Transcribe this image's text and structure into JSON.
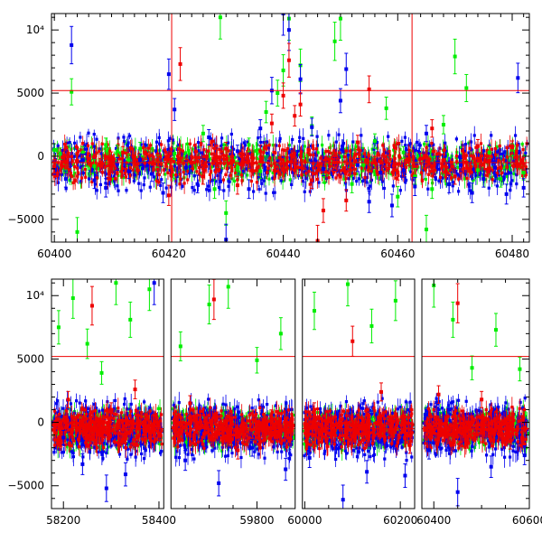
{
  "chart_data": [
    {
      "type": "scatter",
      "title": "",
      "xlabel": "",
      "ylabel": "",
      "xlim": [
        60399.5,
        60483
      ],
      "ylim": [
        -6800,
        11300
      ],
      "grid": false,
      "xticks": [
        60400,
        60420,
        60440,
        60460,
        60480
      ],
      "xtick_labels": [
        "60400",
        "60420",
        "60440",
        "60460",
        "60480"
      ],
      "yticks": [
        -5000,
        0,
        5000,
        10000
      ],
      "ytick_labels": [
        "−5000",
        "0",
        "5000",
        "10⁴"
      ],
      "reference_lines": {
        "horizontal": [
          5200,
          -500
        ],
        "vertical": [
          60420.5,
          60462.5
        ],
        "color": "#ee0000"
      },
      "series": [
        {
          "color": "#00ee00",
          "points": [
            [
              60400,
              500
            ],
            [
              60401,
              200
            ],
            [
              60402,
              -1200
            ],
            [
              60403,
              5100
            ],
            [
              60404,
              -6000
            ],
            [
              60405,
              300
            ],
            [
              60407,
              -800
            ],
            [
              60409,
              900
            ],
            [
              60411,
              400
            ],
            [
              60413,
              -300
            ],
            [
              60415,
              600
            ],
            [
              60418,
              -400
            ],
            [
              60421,
              200
            ],
            [
              60423,
              -900
            ],
            [
              60426,
              1800
            ],
            [
              60428,
              -2600
            ],
            [
              60429,
              11000
            ],
            [
              60430,
              -4500
            ],
            [
              60432,
              -900
            ],
            [
              60434,
              900
            ],
            [
              60436,
              -1200
            ],
            [
              60437,
              3500
            ],
            [
              60439,
              5000
            ],
            [
              60440,
              6800
            ],
            [
              60441,
              10900
            ],
            [
              60443,
              7200
            ],
            [
              60445,
              2400
            ],
            [
              60447,
              -1500
            ],
            [
              60449,
              9100
            ],
            [
              60450,
              10900
            ],
            [
              60452,
              -2200
            ],
            [
              60454,
              -700
            ],
            [
              60456,
              1200
            ],
            [
              60458,
              3800
            ],
            [
              60460,
              -3200
            ],
            [
              60461,
              300
            ],
            [
              60463,
              -1600
            ],
            [
              60465,
              -5800
            ],
            [
              60466,
              -2600
            ],
            [
              60468,
              2500
            ],
            [
              60470,
              7900
            ],
            [
              60472,
              5400
            ],
            [
              60474,
              -1100
            ],
            [
              60476,
              300
            ],
            [
              60478,
              -1800
            ],
            [
              60480,
              500
            ],
            [
              60482,
              -1300
            ]
          ]
        },
        {
          "color": "#0000ee",
          "points": [
            [
              60400,
              -900
            ],
            [
              60402,
              -1800
            ],
            [
              60403,
              8800
            ],
            [
              60405,
              -300
            ],
            [
              60407,
              -1900
            ],
            [
              60409,
              -2500
            ],
            [
              60411,
              -600
            ],
            [
              60413,
              -1200
            ],
            [
              60415,
              -300
            ],
            [
              60417,
              -1400
            ],
            [
              60419,
              -2900
            ],
            [
              60420,
              6500
            ],
            [
              60421,
              3700
            ],
            [
              60423,
              -900
            ],
            [
              60425,
              -2200
            ],
            [
              60427,
              1500
            ],
            [
              60429,
              -2000
            ],
            [
              60430,
              -6600
            ],
            [
              60432,
              400
            ],
            [
              60434,
              -2600
            ],
            [
              60436,
              2200
            ],
            [
              60438,
              5200
            ],
            [
              60440,
              11300
            ],
            [
              60441,
              10000
            ],
            [
              60443,
              6100
            ],
            [
              60445,
              2300
            ],
            [
              60447,
              -1000
            ],
            [
              60449,
              -600
            ],
            [
              60450,
              4400
            ],
            [
              60451,
              6900
            ],
            [
              60453,
              -700
            ],
            [
              60455,
              -3600
            ],
            [
              60457,
              -1300
            ],
            [
              60459,
              -3900
            ],
            [
              60461,
              -1100
            ],
            [
              60463,
              -2400
            ],
            [
              60465,
              1800
            ],
            [
              60467,
              -500
            ],
            [
              60469,
              -2200
            ],
            [
              60471,
              -700
            ],
            [
              60473,
              -2900
            ],
            [
              60475,
              -1800
            ],
            [
              60477,
              -900
            ],
            [
              60479,
              -3000
            ],
            [
              60481,
              6200
            ],
            [
              60482,
              -2500
            ]
          ]
        },
        {
          "color": "#ee0000",
          "points": [
            [
              60400,
              -800
            ],
            [
              60402,
              -500
            ],
            [
              60404,
              200
            ],
            [
              60406,
              -200
            ],
            [
              60408,
              -700
            ],
            [
              60410,
              -100
            ],
            [
              60412,
              300
            ],
            [
              60414,
              -400
            ],
            [
              60416,
              200
            ],
            [
              60418,
              -300
            ],
            [
              60420,
              -3100
            ],
            [
              60422,
              7300
            ],
            [
              60424,
              -500
            ],
            [
              60426,
              -1600
            ],
            [
              60428,
              -200
            ],
            [
              60430,
              600
            ],
            [
              60432,
              -2300
            ],
            [
              60434,
              -400
            ],
            [
              60436,
              400
            ],
            [
              60438,
              2600
            ],
            [
              60440,
              4800
            ],
            [
              60441,
              7600
            ],
            [
              60442,
              3200
            ],
            [
              60443,
              4100
            ],
            [
              60445,
              -1900
            ],
            [
              60446,
              -6700
            ],
            [
              60447,
              -4300
            ],
            [
              60449,
              -500
            ],
            [
              60451,
              -3500
            ],
            [
              60453,
              1100
            ],
            [
              60455,
              5300
            ],
            [
              60456,
              -500
            ],
            [
              60458,
              -400
            ],
            [
              60460,
              -1300
            ],
            [
              60462,
              -300
            ],
            [
              60464,
              -200
            ],
            [
              60466,
              2200
            ],
            [
              60468,
              -300
            ],
            [
              60470,
              -1600
            ],
            [
              60472,
              -500
            ],
            [
              60474,
              800
            ],
            [
              60476,
              -400
            ],
            [
              60478,
              -900
            ],
            [
              60480,
              700
            ],
            [
              60482,
              -600
            ]
          ]
        }
      ]
    },
    {
      "type": "scatter",
      "title": "",
      "xlabel": "",
      "ylabel": "",
      "xlim": [
        58120,
        60635
      ],
      "ylim": [
        -6800,
        11300
      ],
      "grid": false,
      "xticks": [
        58200,
        58400,
        59800,
        60000,
        60200,
        60400,
        60600
      ],
      "xtick_labels": [
        "58200",
        "58400",
        "59800",
        "60000",
        "60200",
        "60400",
        "60600"
      ],
      "yticks": [
        -5000,
        0,
        5000,
        10000
      ],
      "ytick_labels": [
        "−5000",
        "0",
        "5000",
        "10⁴"
      ],
      "segments": [
        [
          58175,
          58410
        ],
        [
          59620,
          59880
        ],
        [
          59995,
          60230
        ],
        [
          60375,
          60600
        ]
      ],
      "reference_lines": {
        "horizontal": [
          5200,
          -500
        ],
        "color": "#ee0000"
      },
      "series": [
        {
          "color": "#00ee00",
          "points": [
            [
              58190,
              7500
            ],
            [
              58220,
              9800
            ],
            [
              58250,
              6200
            ],
            [
              58280,
              3900
            ],
            [
              58310,
              11000
            ],
            [
              58340,
              8100
            ],
            [
              58380,
              10500
            ],
            [
              59640,
              6000
            ],
            [
              59700,
              9300
            ],
            [
              59740,
              10700
            ],
            [
              59800,
              4900
            ],
            [
              59850,
              7000
            ],
            [
              60020,
              8800
            ],
            [
              60090,
              10900
            ],
            [
              60140,
              7600
            ],
            [
              60190,
              9600
            ],
            [
              60400,
              10800
            ],
            [
              60440,
              8100
            ],
            [
              60480,
              4300
            ],
            [
              60530,
              7300
            ],
            [
              60580,
              4200
            ]
          ]
        },
        {
          "color": "#0000ee",
          "points": [
            [
              58200,
              -1200
            ],
            [
              58240,
              -3300
            ],
            [
              58290,
              -5200
            ],
            [
              58330,
              -4100
            ],
            [
              58390,
              11000
            ],
            [
              59650,
              -3000
            ],
            [
              59720,
              -4800
            ],
            [
              59790,
              -2000
            ],
            [
              59860,
              -3700
            ],
            [
              60010,
              -2800
            ],
            [
              60080,
              -6100
            ],
            [
              60130,
              -3900
            ],
            [
              60210,
              -4200
            ],
            [
              60390,
              -2200
            ],
            [
              60450,
              -5500
            ],
            [
              60520,
              -3500
            ],
            [
              60590,
              -2600
            ]
          ]
        },
        {
          "color": "#ee0000",
          "points": [
            [
              58210,
              1800
            ],
            [
              58260,
              9200
            ],
            [
              58300,
              1000
            ],
            [
              58350,
              2600
            ],
            [
              58400,
              -900
            ],
            [
              59660,
              1500
            ],
            [
              59710,
              9700
            ],
            [
              59760,
              -2200
            ],
            [
              59830,
              500
            ],
            [
              60020,
              1000
            ],
            [
              60100,
              6400
            ],
            [
              60160,
              2400
            ],
            [
              60220,
              -1800
            ],
            [
              60410,
              2200
            ],
            [
              60450,
              9400
            ],
            [
              60500,
              1800
            ],
            [
              60560,
              -1500
            ]
          ]
        }
      ]
    }
  ]
}
